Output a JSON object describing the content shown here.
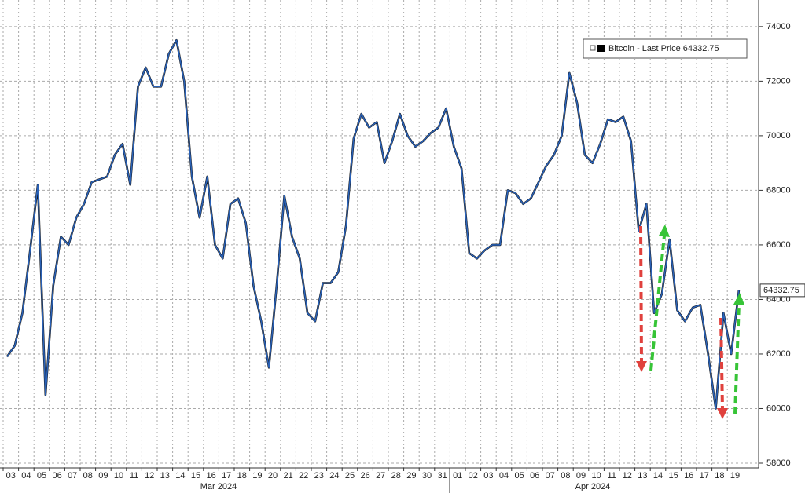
{
  "chart_data": {
    "type": "line",
    "series": [
      {
        "name": "Bitcoin - Last Price",
        "color": "#2a62b8",
        "values": [
          61900,
          62300,
          63500,
          65800,
          68200,
          60500,
          64500,
          66300,
          66000,
          67000,
          67500,
          68300,
          68400,
          68500,
          69300,
          69700,
          68200,
          71800,
          72500,
          71800,
          71800,
          73000,
          73500,
          72000,
          68500,
          67000,
          68500,
          66000,
          65500,
          67500,
          67700,
          66800,
          64500,
          63200,
          61500,
          64500,
          67800,
          66300,
          65500,
          63500,
          63200,
          64600,
          64600,
          65000,
          66700,
          69900,
          70800,
          70300,
          70500,
          69000,
          69800,
          70800,
          70000,
          69600,
          69800,
          70100,
          70300,
          71000,
          69600,
          68800,
          65700,
          65500,
          65800,
          66000,
          66000,
          68000,
          67900,
          67500,
          67700,
          68300,
          68900,
          69300,
          70000,
          72300,
          71200,
          69300,
          69000,
          69700,
          70600,
          70500,
          70700,
          69800,
          66500,
          67500,
          63500,
          64200,
          66200,
          63600,
          63200,
          63700,
          63800,
          62000,
          60000,
          63500,
          62000,
          64332.75
        ]
      }
    ],
    "categories": [
      "03",
      null,
      "04",
      null,
      "05",
      null,
      "06",
      null,
      "07",
      null,
      "08",
      null,
      "09",
      null,
      "10",
      null,
      "11",
      null,
      "12",
      null,
      "13",
      null,
      "14",
      null,
      "15",
      null,
      "16",
      null,
      "17",
      null,
      "18",
      null,
      "19",
      null,
      "20",
      null,
      "21",
      null,
      "22",
      null,
      "23",
      null,
      "24",
      null,
      "25",
      null,
      "26",
      null,
      "27",
      null,
      "28",
      null,
      "29",
      null,
      "30",
      null,
      "31",
      null,
      "01",
      null,
      "02",
      null,
      "03",
      null,
      "04",
      null,
      "05",
      null,
      "06",
      null,
      "07",
      null,
      "08",
      null,
      "09",
      null,
      "10",
      null,
      "11",
      null,
      "12",
      null,
      "13",
      null,
      "14",
      null,
      "15",
      null,
      "16",
      null,
      "17",
      null,
      "18",
      null,
      "19",
      null
    ],
    "month_labels": [
      "Mar 2024",
      "Apr 2024"
    ],
    "ylim": [
      58000,
      74600
    ],
    "yticks": [
      58000,
      60000,
      62000,
      64000,
      66000,
      68000,
      70000,
      72000,
      74000
    ],
    "grid": true
  }
}
